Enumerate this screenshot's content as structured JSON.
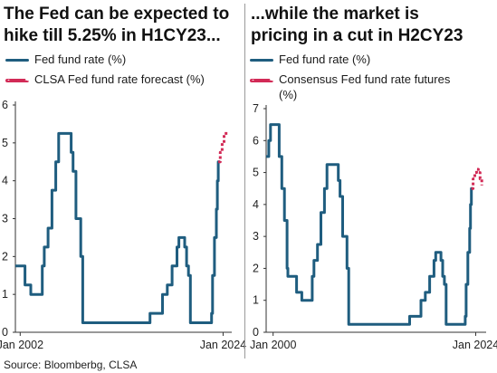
{
  "source": "Source: Bloomberbg, CLSA",
  "colors": {
    "fed": "#1f5d7f",
    "forecast": "#d22a56",
    "axis": "#333333"
  },
  "chart_data": [
    {
      "type": "line",
      "title": "The Fed can be expected to\nhike till 5.25% in H1CY23...",
      "legend": [
        "Fed fund rate (%)",
        "CLSA Fed fund rate forecast (%)"
      ],
      "ylim": [
        0,
        6
      ],
      "yticks": [
        0,
        1,
        2,
        3,
        4,
        5,
        6
      ],
      "xlim": [
        2002.0,
        2024.5
      ],
      "xtick_labels": [
        {
          "x": 2002.5,
          "label": "Jan 2002"
        },
        {
          "x": 2023.6,
          "label": "Jan 2024"
        }
      ],
      "series": [
        {
          "name": "Fed fund rate (%)",
          "style": "solid",
          "x": [
            2002.0,
            2002.9,
            2003.0,
            2003.6,
            2004.5,
            2004.8,
            2005.0,
            2005.4,
            2005.8,
            2006.2,
            2006.5,
            2007.5,
            2007.8,
            2008.0,
            2008.3,
            2008.8,
            2009.0,
            2015.9,
            2016.0,
            2016.9,
            2017.3,
            2017.8,
            2018.3,
            2018.8,
            2019.0,
            2019.4,
            2019.6,
            2019.8,
            2020.0,
            2020.2,
            2022.2,
            2022.4,
            2022.5,
            2022.7,
            2022.9,
            2023.0,
            2023.1,
            2023.3
          ],
          "y": [
            1.75,
            1.75,
            1.25,
            1.0,
            1.0,
            1.75,
            2.25,
            2.75,
            3.75,
            4.5,
            5.25,
            5.25,
            4.75,
            4.25,
            3.0,
            2.0,
            0.25,
            0.25,
            0.5,
            0.5,
            1.0,
            1.25,
            1.75,
            2.25,
            2.5,
            2.5,
            2.25,
            1.75,
            1.5,
            0.25,
            0.25,
            0.5,
            1.5,
            2.5,
            3.25,
            4.0,
            4.5,
            4.5
          ]
        },
        {
          "name": "CLSA Fed fund rate forecast (%)",
          "style": "dashed",
          "x": [
            2023.1,
            2023.3,
            2023.5,
            2023.7,
            2023.9,
            2024.2
          ],
          "y": [
            4.5,
            4.75,
            5.0,
            5.25,
            5.25,
            5.25
          ]
        }
      ]
    },
    {
      "type": "line",
      "title": "...while the market is\npricing in a cut in H2CY23",
      "legend": [
        "Fed fund rate (%)",
        "Consensus Fed fund rate futures (%)"
      ],
      "ylim": [
        0,
        7
      ],
      "yticks": [
        0,
        1,
        2,
        3,
        4,
        5,
        6,
        7
      ],
      "xlim": [
        1999.5,
        2024.8
      ],
      "xtick_labels": [
        {
          "x": 2000.3,
          "label": "Jan 2000"
        },
        {
          "x": 2023.6,
          "label": "Jan 2024"
        }
      ],
      "series": [
        {
          "name": "Fed fund rate (%)",
          "style": "solid",
          "x": [
            1999.5,
            1999.8,
            2000.0,
            2000.4,
            2001.0,
            2001.3,
            2001.6,
            2001.9,
            2002.0,
            2002.9,
            2003.0,
            2003.6,
            2004.5,
            2004.8,
            2005.0,
            2005.4,
            2005.8,
            2006.2,
            2006.5,
            2007.5,
            2007.8,
            2008.0,
            2008.3,
            2008.8,
            2009.0,
            2015.9,
            2016.0,
            2016.9,
            2017.3,
            2017.8,
            2018.3,
            2018.8,
            2019.0,
            2019.4,
            2019.6,
            2019.8,
            2020.0,
            2020.2,
            2022.2,
            2022.4,
            2022.5,
            2022.7,
            2022.9,
            2023.0,
            2023.1,
            2023.3
          ],
          "y": [
            5.5,
            6.0,
            6.5,
            6.5,
            5.5,
            4.5,
            3.5,
            2.0,
            1.75,
            1.75,
            1.25,
            1.0,
            1.0,
            1.75,
            2.25,
            2.75,
            3.75,
            4.5,
            5.25,
            5.25,
            4.75,
            4.25,
            3.0,
            2.0,
            0.25,
            0.25,
            0.5,
            0.5,
            1.0,
            1.25,
            1.75,
            2.25,
            2.5,
            2.5,
            2.25,
            1.75,
            1.5,
            0.25,
            0.25,
            0.5,
            1.5,
            2.5,
            3.25,
            4.0,
            4.5,
            4.5
          ]
        },
        {
          "name": "Consensus Fed fund rate futures (%)",
          "style": "dashed",
          "x": [
            2023.1,
            2023.3,
            2023.5,
            2023.7,
            2023.9,
            2024.1,
            2024.3
          ],
          "y": [
            4.5,
            4.8,
            5.0,
            5.1,
            5.0,
            4.8,
            4.6
          ]
        }
      ]
    }
  ]
}
